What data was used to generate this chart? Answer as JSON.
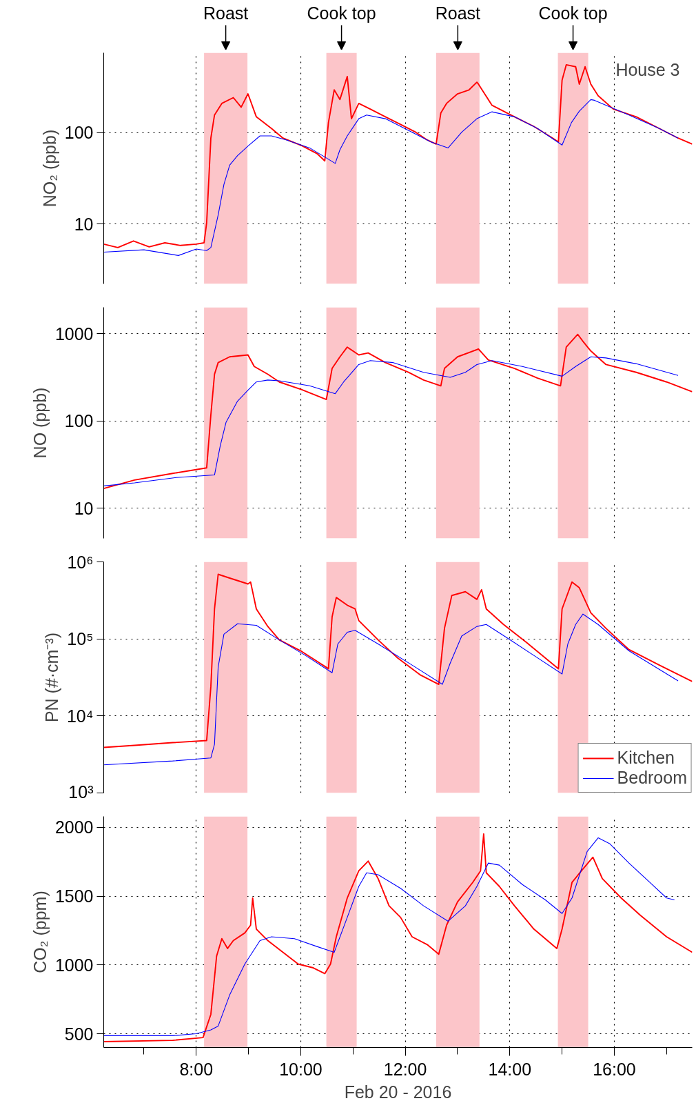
{
  "chart_data": [
    {
      "type": "line",
      "ylabel": "NO₂ (ppb)",
      "log": true,
      "grid": true,
      "tick_labels": "y",
      "xlim": [
        6.23,
        17.49
      ],
      "ylim": [
        2.2,
        750
      ],
      "yticks": [
        10,
        100
      ],
      "xticks": [
        8,
        10,
        12,
        14,
        16
      ],
      "annotations": [
        "House 3"
      ],
      "bands": [
        {
          "axis": "x",
          "from": 8.15,
          "to": 8.98,
          "label": "Roast",
          "color": "#fcc5c9"
        },
        {
          "axis": "x",
          "from": 10.49,
          "to": 11.07,
          "label": "Cook top",
          "color": "#fcc5c9"
        },
        {
          "axis": "x",
          "from": 12.59,
          "to": 13.42,
          "label": "Roast",
          "color": "#fcc5c9"
        },
        {
          "axis": "x",
          "from": 14.92,
          "to": 15.5,
          "label": "Cook top",
          "color": "#fcc5c9"
        }
      ],
      "series": [
        {
          "color": "#ff0000",
          "x": [
            6.23,
            6.5,
            6.8,
            7.1,
            7.4,
            7.7,
            8.0,
            8.15,
            8.2,
            8.28,
            8.35,
            8.49,
            8.71,
            8.86,
            8.99,
            9.15,
            9.44,
            9.66,
            10.02,
            10.31,
            10.46,
            10.53,
            10.64,
            10.75,
            10.89,
            10.97,
            11.11,
            11.33,
            11.62,
            11.91,
            12.2,
            12.42,
            12.59,
            12.68,
            12.79,
            13.0,
            13.22,
            13.37,
            13.4,
            13.66,
            14.09,
            14.46,
            14.82,
            14.93,
            15.0,
            15.08,
            15.26,
            15.33,
            15.44,
            15.55,
            15.69,
            15.98,
            16.42,
            16.86,
            17.22,
            17.49
          ],
          "values": [
            6,
            5.5,
            6.5,
            5.6,
            6.2,
            5.8,
            6,
            6.2,
            10.3,
            87,
            156,
            209,
            242,
            190,
            266,
            149,
            111,
            87,
            72,
            59,
            49,
            129,
            294,
            231,
            412,
            142,
            209,
            181,
            149,
            123,
            101,
            83,
            75,
            164,
            209,
            266,
            294,
            357,
            340,
            199,
            149,
            117,
            87,
            79,
            375,
            554,
            527,
            340,
            527,
            340,
            254,
            181,
            149,
            111,
            87,
            75
          ]
        },
        {
          "color": "#0000ff",
          "x": [
            6.23,
            7.0,
            7.66,
            8.0,
            8.2,
            8.28,
            8.42,
            8.53,
            8.64,
            8.79,
            9.0,
            9.22,
            9.44,
            9.73,
            10.17,
            10.46,
            10.66,
            10.75,
            10.89,
            11.11,
            11.26,
            11.62,
            12.06,
            12.49,
            12.82,
            13.08,
            13.37,
            13.66,
            14.09,
            14.53,
            15.0,
            15.18,
            15.33,
            15.55,
            15.62,
            16.28,
            16.86,
            17.22
          ],
          "values": [
            4.9,
            5.2,
            4.5,
            5.3,
            5.1,
            5.5,
            12.5,
            27,
            44,
            56,
            72,
            92,
            92,
            83,
            68,
            54,
            46,
            65,
            92,
            142,
            156,
            142,
            106,
            79,
            68,
            101,
            142,
            169,
            149,
            111,
            73,
            129,
            172,
            230,
            226,
            156,
            111,
            87
          ]
        }
      ]
    },
    {
      "type": "line",
      "ylabel": "NO (ppb)",
      "log": true,
      "grid": true,
      "tick_labels": "y",
      "xlim": [
        6.23,
        17.49
      ],
      "ylim": [
        4.5,
        2000
      ],
      "yticks": [
        10,
        100,
        1000
      ],
      "xticks": [
        8,
        10,
        12,
        14,
        16
      ],
      "bands": [
        {
          "axis": "x",
          "from": 8.15,
          "to": 8.98,
          "color": "#fcc5c9"
        },
        {
          "axis": "x",
          "from": 10.49,
          "to": 11.07,
          "color": "#fcc5c9"
        },
        {
          "axis": "x",
          "from": 12.59,
          "to": 13.42,
          "color": "#fcc5c9"
        },
        {
          "axis": "x",
          "from": 14.92,
          "to": 15.5,
          "color": "#fcc5c9"
        }
      ],
      "series": [
        {
          "color": "#ff0000",
          "x": [
            6.23,
            6.82,
            7.55,
            8.2,
            8.28,
            8.35,
            8.42,
            8.64,
            8.99,
            9.11,
            9.37,
            9.59,
            10.02,
            10.49,
            10.6,
            10.75,
            10.89,
            11.11,
            11.29,
            11.62,
            12.06,
            12.35,
            12.68,
            12.75,
            13.0,
            13.4,
            13.59,
            14.09,
            14.53,
            14.97,
            15.08,
            15.3,
            15.4,
            15.55,
            15.84,
            16.42,
            17.0,
            17.49
          ],
          "values": [
            16.8,
            21,
            25,
            28.9,
            117,
            342,
            465,
            542,
            570,
            420,
            342,
            279,
            228,
            176,
            399,
            542,
            700,
            570,
            600,
            465,
            360,
            294,
            252,
            399,
            542,
            665,
            499,
            399,
            309,
            252,
            700,
            980,
            815,
            632,
            442,
            360,
            279,
            216
          ]
        },
        {
          "color": "#0000ff",
          "x": [
            6.23,
            6.82,
            7.62,
            8.35,
            8.46,
            8.57,
            8.79,
            9.0,
            9.15,
            9.37,
            9.59,
            10.17,
            10.66,
            10.82,
            11.11,
            11.33,
            11.77,
            12.35,
            12.86,
            13.15,
            13.37,
            13.66,
            14.24,
            15.0,
            15.26,
            15.55,
            15.84,
            16.42,
            17.22
          ],
          "values": [
            18,
            19.5,
            22.4,
            24,
            52,
            96,
            168,
            228,
            279,
            294,
            288,
            252,
            205,
            279,
            442,
            490,
            465,
            360,
            315,
            360,
            442,
            490,
            420,
            325,
            420,
            542,
            526,
            451,
            332
          ]
        }
      ]
    },
    {
      "type": "line",
      "ylabel": "PN (#·cm⁻³)",
      "log": true,
      "grid": true,
      "tick_labels": "y",
      "legend": "bottom right",
      "xlim": [
        6.23,
        17.49
      ],
      "ylim": [
        1000,
        1000000
      ],
      "yticks": [
        {
          "value": 1000,
          "label": "10³"
        },
        {
          "value": 10000,
          "label": "10⁴"
        },
        {
          "value": 100000,
          "label": "10⁵"
        },
        {
          "value": 1000000,
          "label": "10⁶"
        }
      ],
      "xticks": [
        8,
        10,
        12,
        14,
        16
      ],
      "bands": [
        {
          "axis": "x",
          "from": 8.15,
          "to": 8.98,
          "color": "#fcc5c9"
        },
        {
          "axis": "x",
          "from": 10.49,
          "to": 11.07,
          "color": "#fcc5c9"
        },
        {
          "axis": "x",
          "from": 12.59,
          "to": 13.42,
          "color": "#fcc5c9"
        },
        {
          "axis": "x",
          "from": 14.92,
          "to": 15.5,
          "color": "#fcc5c9"
        }
      ],
      "series": [
        {
          "name": "Kitchen",
          "color": "#ff0000",
          "x": [
            6.23,
            6.82,
            7.55,
            8.2,
            8.28,
            8.35,
            8.42,
            8.64,
            8.99,
            9.04,
            9.15,
            9.37,
            9.59,
            10.02,
            10.53,
            10.6,
            10.68,
            10.89,
            11.04,
            11.11,
            11.48,
            11.84,
            12.28,
            12.64,
            12.75,
            12.89,
            13.15,
            13.37,
            13.46,
            13.55,
            13.88,
            14.31,
            14.93,
            15.0,
            15.19,
            15.33,
            15.55,
            15.84,
            16.28,
            16.86,
            17.49
          ],
          "values": [
            3900,
            4150,
            4500,
            4800,
            24000,
            245000,
            690000,
            616000,
            517000,
            548000,
            245000,
            145000,
            97000,
            68600,
            41000,
            193000,
            345000,
            274000,
            245000,
            173000,
            97000,
            57600,
            34300,
            25700,
            137000,
            366000,
            410000,
            326000,
            435000,
            245000,
            154000,
            91000,
            41000,
            245000,
            548000,
            461000,
            218000,
            137000,
            72600,
            45700,
            28000
          ]
        },
        {
          "name": "Bedroom",
          "color": "#0000ff",
          "x": [
            6.23,
            7.55,
            8.28,
            8.35,
            8.42,
            8.53,
            8.79,
            9.15,
            9.59,
            10.09,
            10.6,
            10.71,
            10.89,
            11.04,
            11.48,
            12.13,
            12.71,
            12.86,
            13.08,
            13.37,
            13.55,
            13.95,
            14.46,
            15.0,
            15.11,
            15.26,
            15.4,
            15.69,
            16.28,
            17.22
          ],
          "values": [
            2320,
            2600,
            2850,
            4290,
            43200,
            115000,
            157000,
            150000,
            97000,
            61000,
            36400,
            86000,
            122000,
            129000,
            86000,
            45700,
            25700,
            48500,
            109000,
            145000,
            154000,
            103000,
            61000,
            35000,
            86000,
            154000,
            210000,
            154000,
            70000,
            28500
          ]
        }
      ]
    },
    {
      "type": "line",
      "ylabel": "CO₂ (ppm)",
      "xlabel": "Feb 20 - 2016",
      "grid": true,
      "xlim": [
        6.23,
        17.49
      ],
      "ylim": [
        400,
        2080
      ],
      "yticks": [
        500,
        1000,
        1500,
        2000
      ],
      "xticks": [
        {
          "value": 7,
          "label": null
        },
        {
          "value": 8,
          "label": "8:00"
        },
        {
          "value": 9,
          "label": null
        },
        {
          "value": 10,
          "label": "10:00"
        },
        {
          "value": 11,
          "label": null
        },
        {
          "value": 12,
          "label": "12:00"
        },
        {
          "value": 13,
          "label": null
        },
        {
          "value": 14,
          "label": "14:00"
        },
        {
          "value": 15,
          "label": null
        },
        {
          "value": 16,
          "label": "16:00"
        },
        {
          "value": 17,
          "label": null
        }
      ],
      "bands": [
        {
          "axis": "x",
          "from": 8.15,
          "to": 8.98,
          "color": "#fcc5c9"
        },
        {
          "axis": "x",
          "from": 10.49,
          "to": 11.07,
          "color": "#fcc5c9"
        },
        {
          "axis": "x",
          "from": 12.59,
          "to": 13.42,
          "color": "#fcc5c9"
        },
        {
          "axis": "x",
          "from": 14.92,
          "to": 15.5,
          "color": "#fcc5c9"
        }
      ],
      "series": [
        {
          "color": "#ff0000",
          "x": [
            6.23,
            7.55,
            8.13,
            8.28,
            8.39,
            8.49,
            8.6,
            8.71,
            8.93,
            9.04,
            9.08,
            9.15,
            9.37,
            9.66,
            9.95,
            10.24,
            10.46,
            10.57,
            10.68,
            10.89,
            11.11,
            11.29,
            11.48,
            11.69,
            11.91,
            12.13,
            12.42,
            12.64,
            12.79,
            13.0,
            13.29,
            13.44,
            13.5,
            13.55,
            13.8,
            14.09,
            14.46,
            14.9,
            15.0,
            15.19,
            15.37,
            15.59,
            15.77,
            16.13,
            16.5,
            17.0,
            17.49
          ],
          "values": [
            443,
            452,
            472,
            641,
            1064,
            1191,
            1120,
            1177,
            1233,
            1289,
            1487,
            1261,
            1177,
            1092,
            1007,
            979,
            937,
            1007,
            1205,
            1487,
            1684,
            1755,
            1628,
            1430,
            1346,
            1205,
            1148,
            1078,
            1289,
            1459,
            1600,
            1684,
            1952,
            1670,
            1571,
            1430,
            1261,
            1120,
            1261,
            1600,
            1684,
            1783,
            1628,
            1487,
            1360,
            1205,
            1092
          ]
        },
        {
          "color": "#0000ff",
          "x": [
            6.23,
            7.55,
            8.0,
            8.28,
            8.42,
            8.64,
            8.93,
            9.22,
            9.44,
            9.88,
            10.31,
            10.64,
            10.89,
            11.11,
            11.26,
            11.48,
            11.91,
            12.35,
            12.82,
            13.15,
            13.37,
            13.59,
            13.8,
            14.24,
            14.68,
            15.0,
            15.19,
            15.48,
            15.69,
            15.91,
            16.28,
            16.64,
            17.0,
            17.15
          ],
          "values": [
            486,
            486,
            500,
            528,
            556,
            782,
            1007,
            1177,
            1205,
            1191,
            1134,
            1092,
            1346,
            1571,
            1670,
            1656,
            1557,
            1430,
            1318,
            1430,
            1571,
            1741,
            1726,
            1585,
            1473,
            1374,
            1487,
            1825,
            1924,
            1882,
            1741,
            1614,
            1487,
            1473
          ]
        }
      ]
    }
  ]
}
